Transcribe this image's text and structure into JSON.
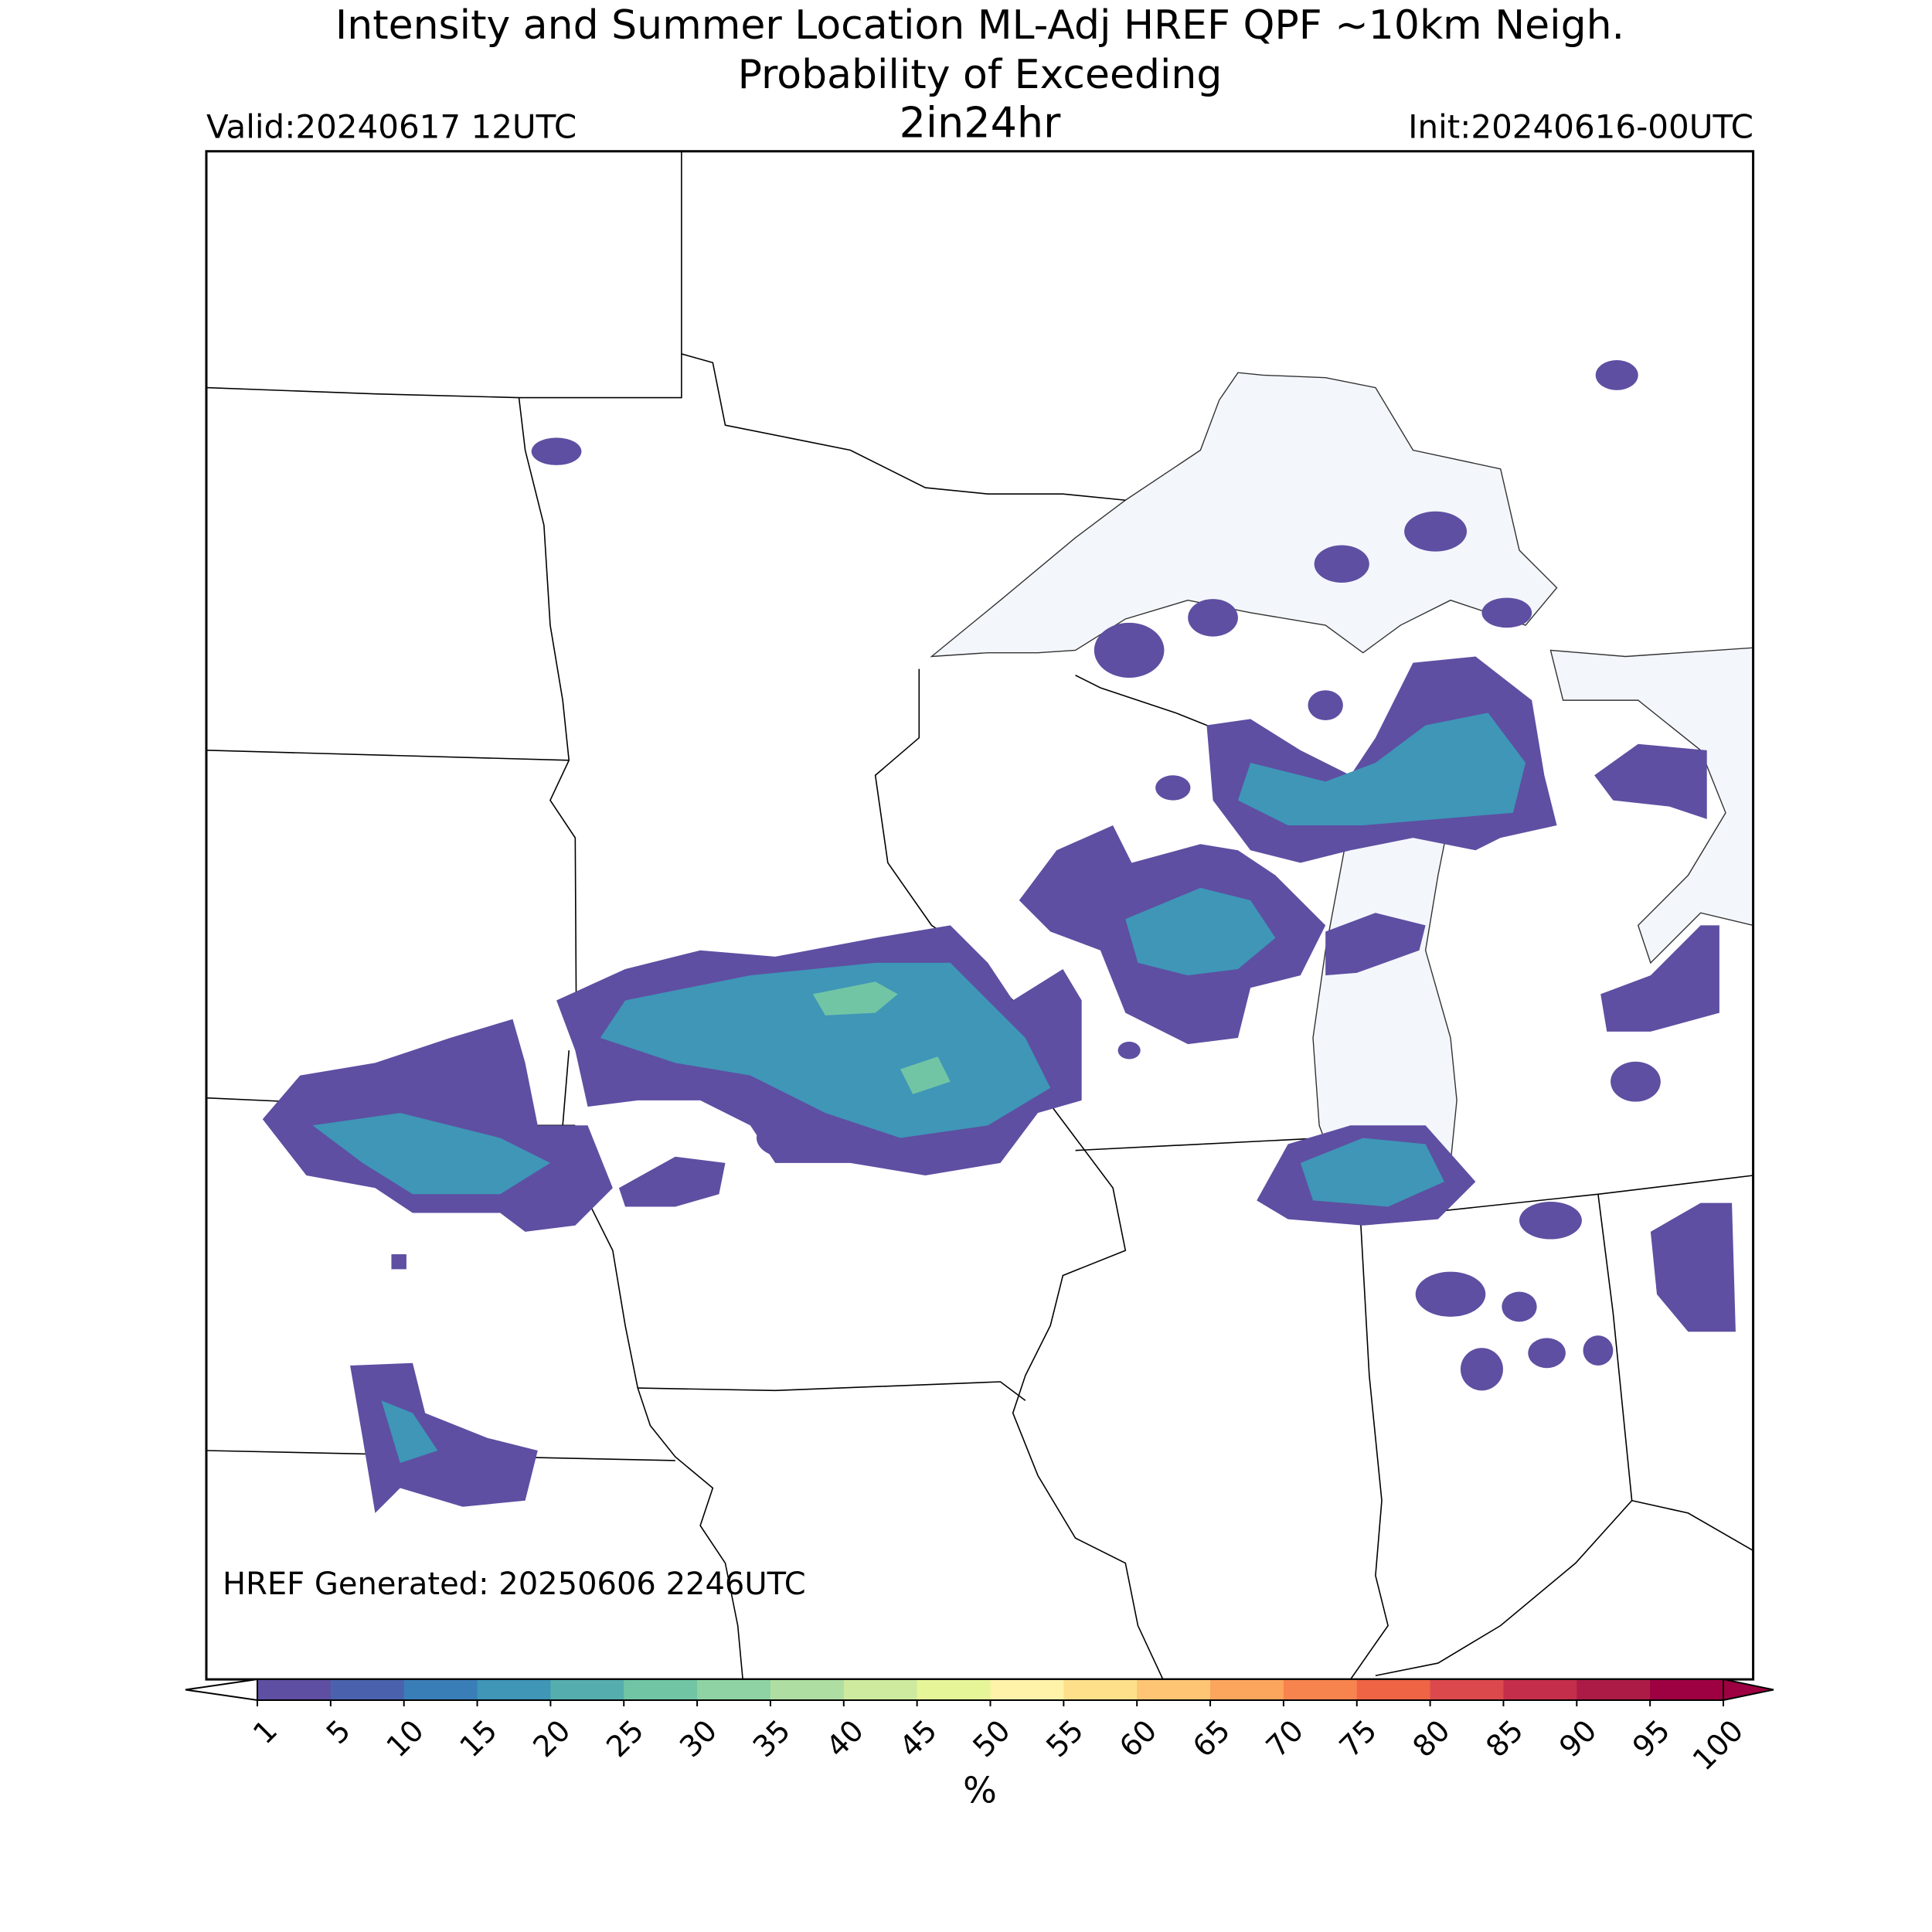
{
  "header": {
    "title_line1": "Intensity and Summer Location ML-Adj HREF QPF ~10km Neigh.",
    "title_line2": "Probability of Exceeding",
    "threshold": "2in24hr",
    "valid": "Valid:20240617 12UTC",
    "init": "Init:20240616-00UTC"
  },
  "map": {
    "footnote": "HREF Generated: 20250606 2246UTC"
  },
  "colorbar": {
    "ticks": [
      1,
      5,
      10,
      15,
      20,
      25,
      30,
      35,
      40,
      45,
      50,
      55,
      60,
      65,
      70,
      75,
      80,
      85,
      90,
      95,
      100
    ],
    "colors": [
      "#5e4fa2",
      "#4a62ad",
      "#3a7eb8",
      "#3f96b7",
      "#55aead",
      "#71c5a5",
      "#8fd3a4",
      "#afdea3",
      "#cdea9e",
      "#e6f598",
      "#fff3aa",
      "#fee08b",
      "#fdc574",
      "#fca55d",
      "#f7844e",
      "#ee6445",
      "#dc494c",
      "#c52e4a",
      "#ac1b46",
      "#9e0142"
    ],
    "over_color": "#9e0142",
    "under_color": "#ffffff",
    "unit": "%"
  }
}
